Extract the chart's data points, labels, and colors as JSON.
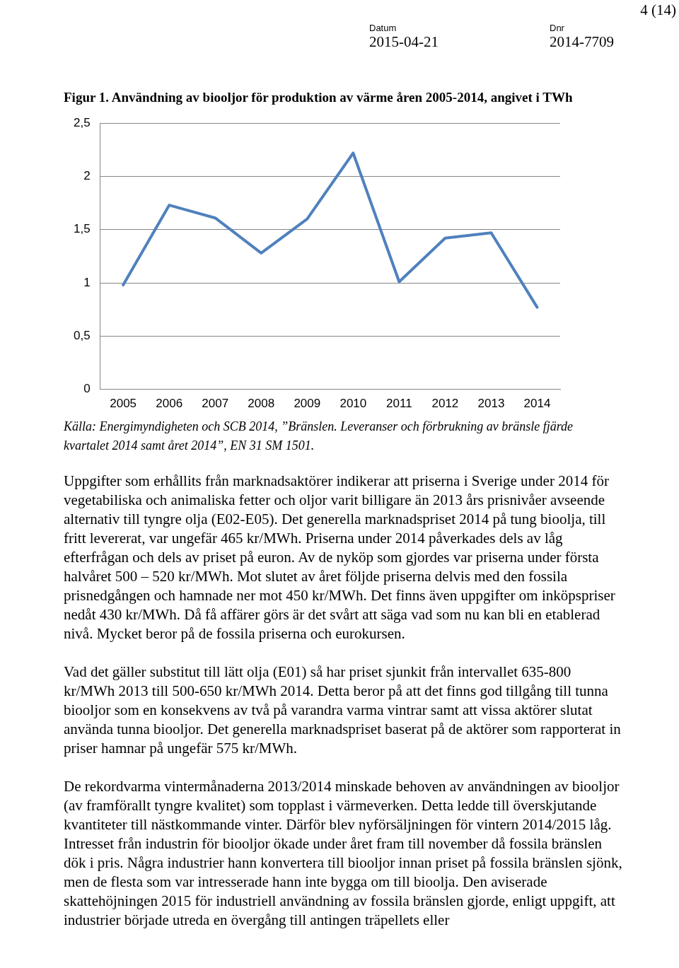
{
  "chart_data": {
    "type": "line",
    "title": "Figur 1. Användning av biooljor för produktion av värme åren 2005-2014, angivet i TWh",
    "categories": [
      "2005",
      "2006",
      "2007",
      "2008",
      "2009",
      "2010",
      "2011",
      "2012",
      "2013",
      "2014"
    ],
    "series": [
      {
        "color": "#4f81bd",
        "values": [
          0.98,
          1.73,
          1.61,
          1.28,
          1.6,
          2.22,
          1.01,
          1.42,
          1.47,
          0.77
        ]
      }
    ],
    "ylim": [
      0,
      2.5
    ],
    "yticks": [
      0,
      {
        "value": 0.5,
        "label": "0,5"
      },
      1,
      {
        "value": 1.5,
        "label": "1,5"
      },
      2,
      {
        "value": 2.5,
        "label": "2,5"
      }
    ],
    "grid": "y",
    "legend": false,
    "marker": "none",
    "line_style": "solid",
    "annotations": [
      "4 (14)",
      "Datum",
      "2015-04-21",
      "Dnr",
      "2014-7709",
      "Källa: Energimyndigheten och SCB 2014, ”Bränslen. Leveranser och förbrukning av bränsle fjärde kvartalet 2014 samt året 2014”, EN 31 SM 1501.",
      "Uppgifter som erhållits från marknadsaktörer indikerar att priserna i Sverige under 2014 för vegetabiliska och animaliska fetter och oljor varit billigare än 2013 års prisnivåer avseende alternativ till tyngre olja (E02-E05). Det generella marknadspriset 2014 på tung bioolja, till fritt levererat, var ungefär 465 kr/MWh. Priserna under 2014 påverkades dels av låg efterfrågan och dels av priset på euron. Av de nyköp som gjordes var priserna under första halvåret 500 – 520 kr/MWh. Mot slutet av året följde priserna delvis med den fossila prisnedgången och hamnade ner mot 450 kr/MWh. Det finns även uppgifter om inköpspriser nedåt 430 kr/MWh. Då få affärer görs är det svårt att säga vad som nu kan bli en etablerad nivå. Mycket beror på de fossila priserna och eurokursen.",
      "Vad det gäller substitut till lätt olja (E01) så har priset sjunkit från intervallet 635-800 kr/MWh 2013 till 500-650 kr/MWh 2014. Detta beror på att det finns god tillgång till tunna biooljor som en konsekvens av två på varandra varma vintrar samt att vissa aktörer slutat använda tunna biooljor. Det generella marknadspriset baserat på de aktörer som rapporterat in priser hamnar på ungefär 575 kr/MWh.",
      "De rekordvarma vintermånaderna 2013/2014 minskade behoven av användningen av biooljor (av framförallt tyngre kvalitet) som topplast i värmeverken. Detta ledde till överskjutande kvantiteter till nästkommande vinter. Därför blev nyförsäljningen för vintern 2014/2015 låg. Intresset från industrin för biooljor ökade under året fram till november då fossila bränslen dök i pris. Några industrier hann konvertera till biooljor innan priset på fossila bränslen sjönk, men de flesta som var intresserade hann inte bygga om till bioolja. Den aviserade skattehöjningen 2015 för industriell användning av fossila bränslen gjorde, enligt uppgift, att industrier började utreda en övergång till antingen träpellets eller"
    ]
  }
}
